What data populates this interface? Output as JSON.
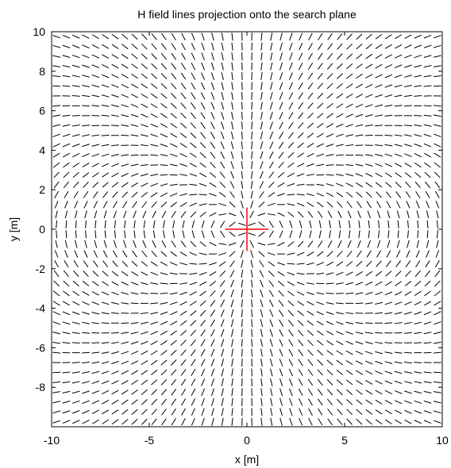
{
  "chart_data": {
    "type": "quiver",
    "title": "H field lines projection onto the search plane",
    "xlabel": "x [m]",
    "ylabel": "y [m]",
    "xlim": [
      -10,
      10
    ],
    "ylim": [
      -10,
      10
    ],
    "x_ticks": [
      -10,
      -5,
      0,
      5,
      10
    ],
    "x_tick_labels": [
      "-10",
      "-5",
      "0",
      "5",
      "10"
    ],
    "y_ticks": [
      -8,
      -6,
      -4,
      -2,
      0,
      2,
      4,
      6,
      8,
      10
    ],
    "y_tick_labels": [
      "-8",
      "-6",
      "-4",
      "-2",
      "0",
      "2",
      "4",
      "6",
      "8",
      "10"
    ],
    "grid": false,
    "field": {
      "description": "direction field of a dipole source located at the origin, sampled on a regular grid",
      "grid_min": -9.75,
      "grid_max": 9.75,
      "grid_step": 0.5,
      "source": [
        0,
        0
      ],
      "segment_length": 0.4
    },
    "source_marker": {
      "center": [
        0,
        0
      ],
      "horizontal_extent": [
        -1.1,
        1.1
      ],
      "vertical_extent": [
        -1.1,
        1.1
      ],
      "color": "#ff0000"
    },
    "colors": {
      "lines": "#000000",
      "axes": "#000000",
      "background": "#ffffff"
    }
  }
}
